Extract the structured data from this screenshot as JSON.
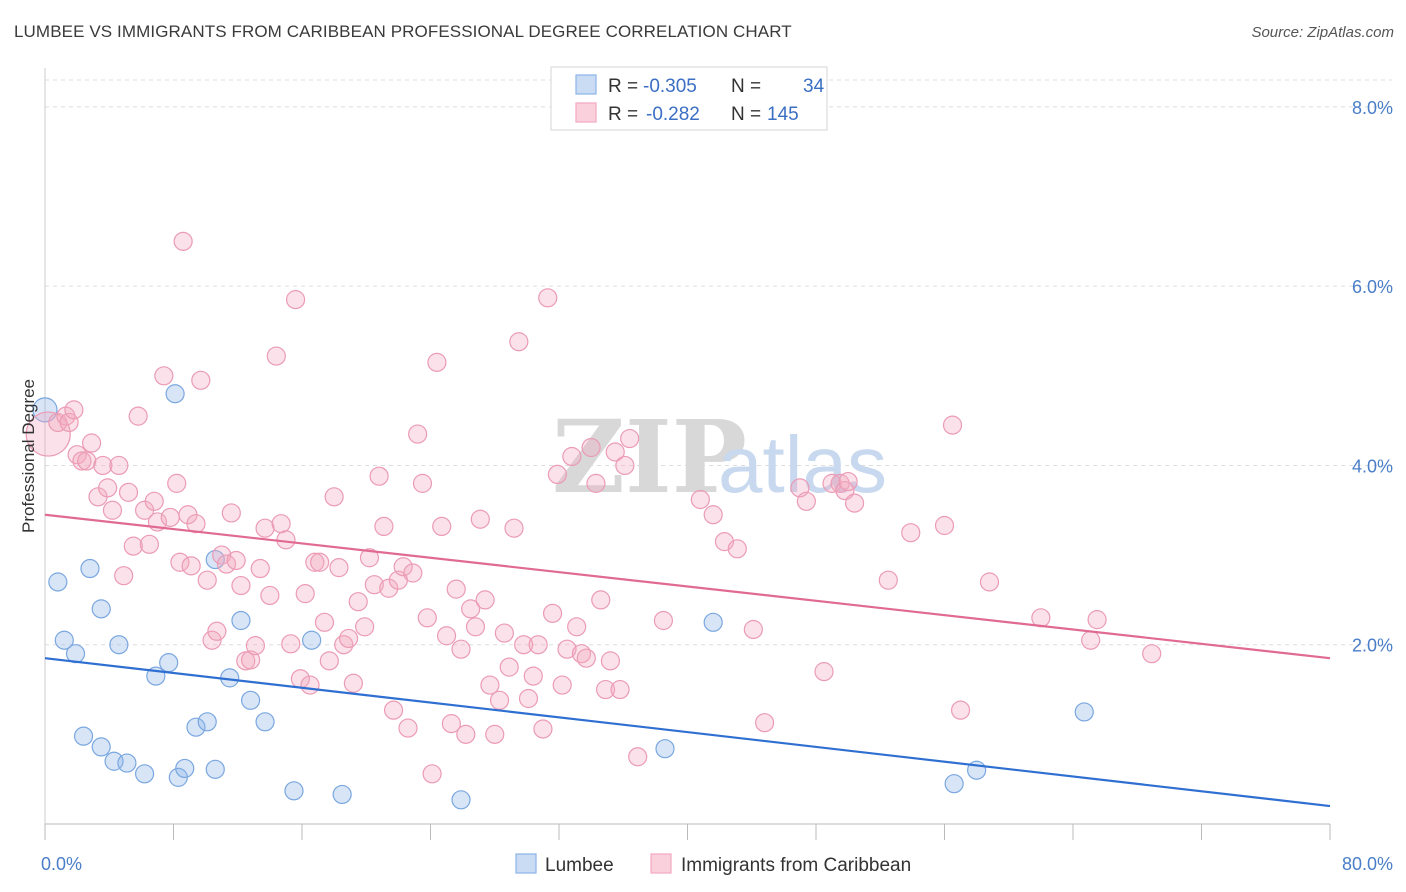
{
  "title": "LUMBEE VS IMMIGRANTS FROM CARIBBEAN PROFESSIONAL DEGREE CORRELATION CHART",
  "source": "Source: ZipAtlas.com",
  "watermark": {
    "zip": "ZIP",
    "atlas": "atlas"
  },
  "chart_data": {
    "type": "scatter",
    "xlabel": "",
    "ylabel": "Professional Degree",
    "xlim": [
      0,
      80
    ],
    "ylim": [
      0,
      8.3
    ],
    "x_ticks": [
      {
        "value": 0,
        "label": "0.0%"
      },
      {
        "value": 80,
        "label": "80.0%"
      }
    ],
    "y_ticks": [
      {
        "value": 2,
        "label": "2.0%"
      },
      {
        "value": 4,
        "label": "4.0%"
      },
      {
        "value": 6,
        "label": "6.0%"
      },
      {
        "value": 8,
        "label": "8.0%"
      }
    ],
    "grid": true,
    "legend_position": "top-center",
    "legend": [
      {
        "series": "Lumbee",
        "r_label": "R = ",
        "r_value": "-0.305",
        "n_label": "N = ",
        "n_value": "34"
      },
      {
        "series": "Immigrants from Caribbean",
        "r_label": "R = ",
        "r_value": "-0.282",
        "n_label": "N = ",
        "n_value": "145"
      }
    ],
    "series": [
      {
        "name": "Lumbee",
        "color": "#8db5e8",
        "line_color": "#2f6fd1",
        "trend": {
          "x1": 0,
          "y1": 1.85,
          "x2": 80,
          "y2": 0.2
        },
        "points": [
          [
            0.0,
            4.62
          ],
          [
            0.8,
            2.7
          ],
          [
            1.2,
            2.05
          ],
          [
            1.9,
            1.9
          ],
          [
            2.8,
            2.85
          ],
          [
            2.4,
            0.98
          ],
          [
            3.5,
            0.86
          ],
          [
            3.5,
            2.4
          ],
          [
            4.6,
            2.0
          ],
          [
            4.3,
            0.7
          ],
          [
            5.1,
            0.68
          ],
          [
            6.2,
            0.56
          ],
          [
            7.7,
            1.8
          ],
          [
            6.9,
            1.65
          ],
          [
            8.3,
            0.52
          ],
          [
            8.7,
            0.62
          ],
          [
            8.1,
            4.8
          ],
          [
            9.4,
            1.08
          ],
          [
            10.1,
            1.14
          ],
          [
            10.6,
            0.61
          ],
          [
            10.6,
            2.95
          ],
          [
            11.5,
            1.63
          ],
          [
            12.2,
            2.27
          ],
          [
            12.8,
            1.38
          ],
          [
            13.7,
            1.14
          ],
          [
            15.5,
            0.37
          ],
          [
            16.6,
            2.05
          ],
          [
            18.5,
            0.33
          ],
          [
            25.9,
            0.27
          ],
          [
            38.6,
            0.84
          ],
          [
            41.6,
            2.25
          ],
          [
            64.7,
            1.25
          ],
          [
            56.6,
            0.45
          ],
          [
            58.0,
            0.6
          ]
        ]
      },
      {
        "name": "Immigrants from Caribbean",
        "color": "#f4a8c0",
        "line_color": "#e06a93",
        "trend": {
          "x1": 0,
          "y1": 3.45,
          "x2": 80,
          "y2": 1.85
        },
        "points": [
          [
            0.2,
            4.35
          ],
          [
            0.8,
            4.48
          ],
          [
            1.3,
            4.55
          ],
          [
            1.5,
            4.48
          ],
          [
            1.8,
            4.62
          ],
          [
            2.0,
            4.12
          ],
          [
            2.3,
            4.05
          ],
          [
            2.6,
            4.05
          ],
          [
            2.9,
            4.25
          ],
          [
            3.3,
            3.65
          ],
          [
            3.6,
            4.0
          ],
          [
            3.9,
            3.75
          ],
          [
            4.2,
            3.5
          ],
          [
            4.6,
            4.0
          ],
          [
            4.9,
            2.77
          ],
          [
            5.2,
            3.7
          ],
          [
            5.5,
            3.1
          ],
          [
            5.8,
            4.55
          ],
          [
            6.2,
            3.5
          ],
          [
            6.5,
            3.12
          ],
          [
            6.8,
            3.6
          ],
          [
            7.0,
            3.37
          ],
          [
            7.4,
            5.0
          ],
          [
            7.8,
            3.42
          ],
          [
            8.2,
            3.8
          ],
          [
            8.4,
            2.92
          ],
          [
            8.6,
            6.5
          ],
          [
            8.9,
            3.45
          ],
          [
            9.1,
            2.88
          ],
          [
            9.4,
            3.35
          ],
          [
            9.7,
            4.95
          ],
          [
            10.1,
            2.72
          ],
          [
            10.4,
            2.05
          ],
          [
            10.7,
            2.15
          ],
          [
            11.0,
            3.0
          ],
          [
            11.3,
            2.9
          ],
          [
            11.6,
            3.47
          ],
          [
            11.9,
            2.94
          ],
          [
            12.2,
            2.66
          ],
          [
            12.5,
            1.82
          ],
          [
            12.8,
            1.83
          ],
          [
            13.1,
            1.99
          ],
          [
            13.4,
            2.85
          ],
          [
            13.7,
            3.3
          ],
          [
            14.0,
            2.55
          ],
          [
            14.4,
            5.22
          ],
          [
            14.7,
            3.35
          ],
          [
            15.0,
            3.17
          ],
          [
            15.3,
            2.01
          ],
          [
            15.6,
            5.85
          ],
          [
            15.9,
            1.62
          ],
          [
            16.2,
            2.57
          ],
          [
            16.5,
            1.55
          ],
          [
            16.8,
            2.92
          ],
          [
            17.1,
            2.92
          ],
          [
            17.4,
            2.25
          ],
          [
            17.7,
            1.82
          ],
          [
            18.0,
            3.65
          ],
          [
            18.3,
            2.86
          ],
          [
            18.6,
            2.0
          ],
          [
            18.9,
            2.07
          ],
          [
            19.2,
            1.57
          ],
          [
            19.5,
            2.48
          ],
          [
            19.9,
            2.2
          ],
          [
            20.2,
            2.97
          ],
          [
            20.5,
            2.67
          ],
          [
            20.8,
            3.88
          ],
          [
            21.1,
            3.32
          ],
          [
            21.4,
            2.63
          ],
          [
            21.7,
            1.27
          ],
          [
            22.0,
            2.72
          ],
          [
            22.3,
            2.87
          ],
          [
            22.6,
            1.07
          ],
          [
            22.9,
            2.8
          ],
          [
            23.2,
            4.35
          ],
          [
            23.5,
            3.8
          ],
          [
            23.8,
            2.3
          ],
          [
            24.1,
            0.56
          ],
          [
            24.4,
            5.15
          ],
          [
            24.7,
            3.32
          ],
          [
            25.0,
            2.1
          ],
          [
            25.3,
            1.12
          ],
          [
            25.6,
            2.62
          ],
          [
            25.9,
            1.95
          ],
          [
            26.2,
            1.0
          ],
          [
            26.5,
            2.4
          ],
          [
            26.8,
            2.2
          ],
          [
            27.1,
            3.4
          ],
          [
            27.4,
            2.5
          ],
          [
            27.7,
            1.55
          ],
          [
            28.0,
            1.0
          ],
          [
            28.3,
            1.38
          ],
          [
            28.6,
            2.13
          ],
          [
            28.9,
            1.75
          ],
          [
            29.2,
            3.3
          ],
          [
            29.5,
            5.38
          ],
          [
            29.8,
            2.0
          ],
          [
            30.1,
            1.4
          ],
          [
            30.4,
            1.65
          ],
          [
            30.7,
            2.0
          ],
          [
            31.0,
            1.06
          ],
          [
            31.3,
            5.87
          ],
          [
            31.6,
            2.35
          ],
          [
            31.9,
            3.9
          ],
          [
            32.2,
            1.55
          ],
          [
            32.5,
            1.95
          ],
          [
            32.8,
            4.1
          ],
          [
            33.1,
            2.2
          ],
          [
            33.4,
            1.9
          ],
          [
            33.7,
            1.85
          ],
          [
            34.0,
            4.2
          ],
          [
            34.3,
            3.8
          ],
          [
            34.6,
            2.5
          ],
          [
            34.9,
            1.5
          ],
          [
            35.2,
            1.82
          ],
          [
            35.5,
            4.15
          ],
          [
            35.8,
            1.5
          ],
          [
            36.1,
            4.0
          ],
          [
            36.4,
            4.3
          ],
          [
            36.9,
            0.75
          ],
          [
            38.5,
            2.27
          ],
          [
            40.8,
            3.62
          ],
          [
            41.6,
            3.45
          ],
          [
            42.3,
            3.15
          ],
          [
            43.1,
            3.07
          ],
          [
            44.1,
            2.17
          ],
          [
            44.8,
            1.13
          ],
          [
            47.0,
            3.75
          ],
          [
            47.4,
            3.6
          ],
          [
            48.5,
            1.7
          ],
          [
            49.0,
            3.8
          ],
          [
            49.5,
            3.8
          ],
          [
            49.8,
            3.72
          ],
          [
            50.4,
            3.58
          ],
          [
            52.5,
            2.72
          ],
          [
            53.9,
            3.25
          ],
          [
            56.0,
            3.33
          ],
          [
            56.5,
            4.45
          ],
          [
            57.0,
            1.27
          ],
          [
            58.8,
            2.7
          ],
          [
            62.0,
            2.3
          ],
          [
            65.1,
            2.05
          ],
          [
            65.5,
            2.28
          ],
          [
            68.9,
            1.9
          ],
          [
            50.0,
            3.82
          ]
        ]
      }
    ]
  }
}
